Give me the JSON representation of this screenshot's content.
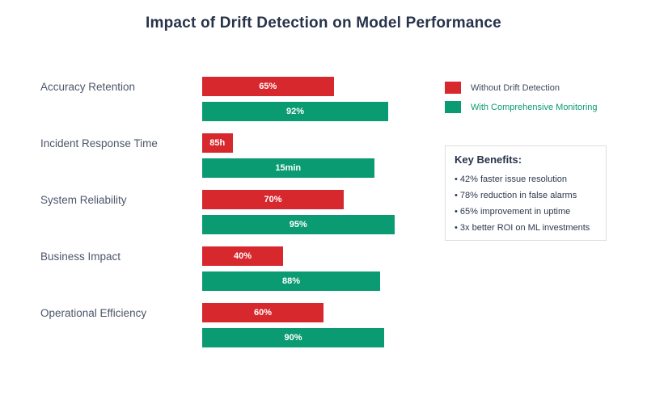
{
  "title": "Impact of Drift Detection on Model Performance",
  "chart_data": {
    "type": "bar",
    "orientation": "horizontal",
    "title": "Impact of Drift Detection on Model Performance",
    "categories": [
      "Accuracy Retention",
      "Incident Response Time",
      "System Reliability",
      "Business Impact",
      "Operational Efficiency"
    ],
    "series": [
      {
        "name": "Without Drift Detection",
        "color": "#d7282e",
        "labels": [
          "65%",
          "85h",
          "70%",
          "40%",
          "60%"
        ],
        "bar_lengths_pct": [
          65,
          15,
          70,
          40,
          60
        ]
      },
      {
        "name": "With Comprehensive Monitoring",
        "color": "#0b9b72",
        "labels": [
          "92%",
          "15min",
          "95%",
          "88%",
          "90%"
        ],
        "bar_lengths_pct": [
          92,
          85,
          95,
          88,
          90
        ]
      }
    ],
    "xlim": [
      0,
      100
    ],
    "grid": false,
    "legend_position": "top-right"
  },
  "legend": {
    "items": [
      {
        "label": "Without Drift Detection",
        "color": "#d7282e",
        "text_color": "#3e4a5c"
      },
      {
        "label": "With Comprehensive Monitoring",
        "color": "#0b9b72",
        "text_color": "#0b9b72"
      }
    ]
  },
  "key_benefits": {
    "heading": "Key Benefits:",
    "items": [
      "• 42% faster issue resolution",
      "• 78% reduction in false alarms",
      "• 65% improvement in uptime",
      "• 3x better ROI on ML investments"
    ]
  },
  "colors": {
    "without_drift": "#d7282e",
    "with_monitoring": "#0b9b72",
    "title_text": "#27334a",
    "category_text": "#4c566a",
    "background": "#ffffff"
  }
}
